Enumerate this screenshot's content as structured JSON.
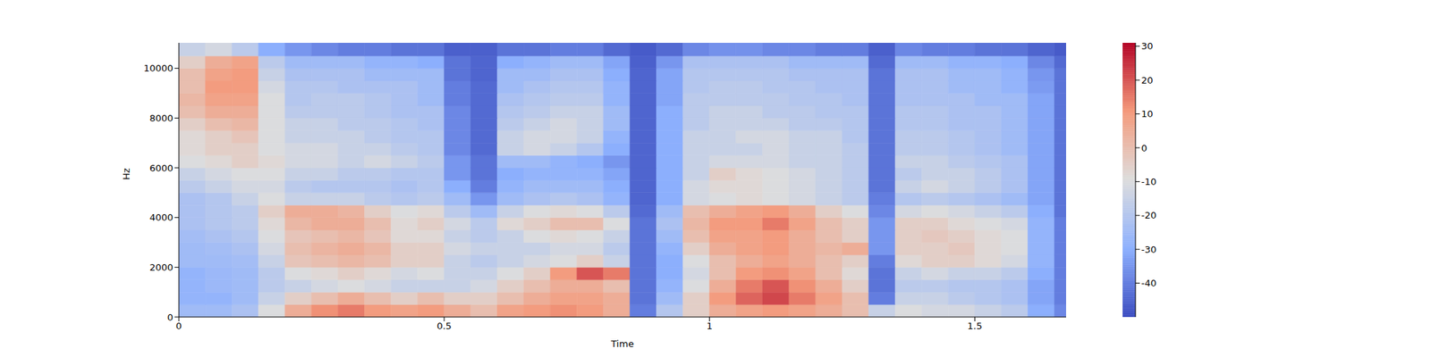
{
  "chart_data": {
    "type": "heatmap",
    "xlabel": "Time",
    "ylabel": "Hz",
    "xlim": [
      0,
      1.672
    ],
    "xticks": [
      0,
      0.5,
      1,
      1.5
    ],
    "ylim": [
      0,
      11025
    ],
    "yticks": [
      0,
      2000,
      4000,
      6000,
      8000,
      10000
    ],
    "x_bins": [
      0,
      0.05,
      0.1,
      0.15,
      0.2,
      0.25,
      0.3,
      0.35,
      0.4,
      0.45,
      0.5,
      0.55,
      0.6,
      0.65,
      0.7,
      0.75,
      0.8,
      0.85,
      0.9,
      0.95,
      1.0,
      1.05,
      1.1,
      1.15,
      1.2,
      1.25,
      1.3,
      1.35,
      1.4,
      1.45,
      1.5,
      1.55,
      1.6,
      1.65,
      1.672
    ],
    "y_bins": [
      0,
      500,
      1000,
      1500,
      2000,
      2500,
      3000,
      3500,
      4000,
      4500,
      5000,
      5500,
      6000,
      6500,
      7000,
      7500,
      8000,
      8500,
      9000,
      9500,
      10000,
      10500,
      11025
    ],
    "colorbar": {
      "range": [
        -50,
        31
      ],
      "ticks": [
        -40,
        -30,
        -20,
        -10,
        0,
        10,
        20,
        30
      ]
    },
    "z": [
      [
        -25,
        -25,
        -22,
        -10,
        5,
        12,
        15,
        10,
        8,
        10,
        5,
        0,
        8,
        10,
        12,
        10,
        5,
        -40,
        -20,
        -5,
        5,
        8,
        10,
        8,
        5,
        0,
        -15,
        -10,
        -12,
        -12,
        -15,
        -18,
        -30,
        -38
      ],
      [
        -28,
        -28,
        -25,
        -15,
        -5,
        0,
        5,
        0,
        -5,
        0,
        -5,
        -5,
        0,
        5,
        8,
        8,
        5,
        -42,
        -25,
        -5,
        10,
        18,
        22,
        15,
        8,
        0,
        -40,
        -15,
        -15,
        -18,
        -20,
        -22,
        -32,
        -40
      ],
      [
        -28,
        -26,
        -25,
        -18,
        -15,
        -12,
        -10,
        -12,
        -15,
        -15,
        -15,
        -12,
        -5,
        0,
        5,
        5,
        0,
        -42,
        -28,
        -10,
        5,
        15,
        20,
        12,
        5,
        -5,
        -42,
        -18,
        -18,
        -20,
        -20,
        -22,
        -32,
        -40
      ],
      [
        -28,
        -26,
        -25,
        -18,
        -10,
        -8,
        -5,
        -8,
        -12,
        -10,
        -15,
        -15,
        -10,
        -5,
        10,
        20,
        15,
        -42,
        -30,
        -12,
        0,
        10,
        12,
        8,
        0,
        -8,
        -42,
        -15,
        -12,
        -15,
        -15,
        -18,
        -30,
        -40
      ],
      [
        -25,
        -25,
        -24,
        -15,
        -2,
        0,
        2,
        0,
        -5,
        -5,
        -15,
        -18,
        -15,
        -12,
        -10,
        -5,
        -15,
        -42,
        -30,
        -10,
        0,
        5,
        8,
        5,
        0,
        -5,
        -40,
        -8,
        -5,
        -5,
        -8,
        -12,
        -28,
        -40
      ],
      [
        -25,
        -24,
        -22,
        -12,
        0,
        3,
        5,
        2,
        -5,
        -5,
        -12,
        -15,
        -15,
        -15,
        -12,
        -12,
        -18,
        -42,
        -28,
        -5,
        5,
        8,
        10,
        5,
        2,
        5,
        -35,
        -5,
        -5,
        -3,
        -8,
        -10,
        -28,
        -40
      ],
      [
        -24,
        -22,
        -20,
        -10,
        -2,
        0,
        2,
        -2,
        -8,
        -8,
        -15,
        -18,
        -15,
        -10,
        -8,
        -10,
        -15,
        -42,
        -25,
        0,
        8,
        8,
        10,
        5,
        0,
        -5,
        -35,
        -5,
        -3,
        -5,
        -8,
        -10,
        -28,
        -40
      ],
      [
        -22,
        -20,
        -18,
        -8,
        2,
        5,
        5,
        0,
        -8,
        -5,
        -12,
        -18,
        -8,
        -5,
        0,
        0,
        -10,
        -42,
        -22,
        2,
        10,
        10,
        15,
        8,
        0,
        -5,
        -35,
        -5,
        -5,
        -8,
        -10,
        -12,
        -28,
        -40
      ],
      [
        -22,
        -20,
        -18,
        -5,
        5,
        5,
        3,
        -5,
        -10,
        -8,
        -18,
        -25,
        -15,
        -10,
        -8,
        -10,
        -18,
        -44,
        -25,
        0,
        5,
        8,
        10,
        5,
        -5,
        -10,
        -38,
        -12,
        -10,
        -12,
        -15,
        -18,
        -30,
        -42
      ],
      [
        -22,
        -20,
        -15,
        -10,
        -15,
        -15,
        -15,
        -18,
        -20,
        -18,
        -25,
        -35,
        -25,
        -22,
        -20,
        -22,
        -28,
        -45,
        -30,
        -12,
        -10,
        -8,
        -10,
        -12,
        -15,
        -18,
        -40,
        -20,
        -18,
        -20,
        -22,
        -25,
        -32,
        -42
      ],
      [
        -18,
        -15,
        -12,
        -12,
        -18,
        -20,
        -20,
        -20,
        -22,
        -20,
        -30,
        -40,
        -28,
        -25,
        -25,
        -25,
        -30,
        -45,
        -30,
        -12,
        -8,
        -8,
        -10,
        -12,
        -15,
        -18,
        -42,
        -15,
        -12,
        -15,
        -18,
        -22,
        -32,
        -42
      ],
      [
        -15,
        -12,
        -10,
        -10,
        -15,
        -15,
        -18,
        -18,
        -20,
        -20,
        -35,
        -42,
        -30,
        -28,
        -28,
        -28,
        -32,
        -45,
        -30,
        -15,
        -5,
        -8,
        -10,
        -12,
        -15,
        -18,
        -42,
        -18,
        -15,
        -15,
        -18,
        -22,
        -32,
        -42
      ],
      [
        -10,
        -8,
        -5,
        -8,
        -12,
        -12,
        -15,
        -12,
        -15,
        -18,
        -35,
        -42,
        -25,
        -25,
        -28,
        -30,
        -35,
        -45,
        -30,
        -15,
        -12,
        -12,
        -12,
        -15,
        -15,
        -18,
        -42,
        -15,
        -15,
        -18,
        -20,
        -22,
        -32,
        -42
      ],
      [
        -8,
        -5,
        -5,
        -10,
        -12,
        -12,
        -15,
        -15,
        -18,
        -20,
        -38,
        -44,
        -15,
        -12,
        -15,
        -20,
        -30,
        -45,
        -30,
        -15,
        -15,
        -15,
        -12,
        -15,
        -15,
        -18,
        -42,
        -18,
        -18,
        -20,
        -22,
        -25,
        -32,
        -42
      ],
      [
        -8,
        -5,
        -2,
        -10,
        -15,
        -15,
        -15,
        -18,
        -20,
        -20,
        -38,
        -44,
        -15,
        -12,
        -12,
        -15,
        -28,
        -45,
        -30,
        -15,
        -15,
        -12,
        -12,
        -15,
        -15,
        -20,
        -42,
        -18,
        -18,
        -20,
        -22,
        -25,
        -32,
        -42
      ],
      [
        -5,
        0,
        2,
        -10,
        -15,
        -15,
        -18,
        -18,
        -20,
        -22,
        -38,
        -44,
        -18,
        -15,
        -12,
        -15,
        -25,
        -45,
        -30,
        -18,
        -15,
        -15,
        -15,
        -18,
        -18,
        -20,
        -42,
        -20,
        -20,
        -22,
        -22,
        -25,
        -32,
        -42
      ],
      [
        0,
        5,
        5,
        -10,
        -18,
        -18,
        -18,
        -20,
        -22,
        -22,
        -38,
        -44,
        -20,
        -18,
        -15,
        -15,
        -25,
        -45,
        -30,
        -18,
        -15,
        -15,
        -18,
        -18,
        -20,
        -20,
        -42,
        -20,
        -20,
        -22,
        -22,
        -25,
        -32,
        -42
      ],
      [
        2,
        8,
        8,
        -10,
        -20,
        -18,
        -18,
        -20,
        -22,
        -25,
        -40,
        -44,
        -22,
        -20,
        -18,
        -18,
        -28,
        -45,
        -32,
        -18,
        -18,
        -18,
        -18,
        -20,
        -20,
        -22,
        -42,
        -22,
        -22,
        -22,
        -25,
        -25,
        -32,
        -42
      ],
      [
        0,
        10,
        10,
        -12,
        -20,
        -20,
        -22,
        -22,
        -22,
        -25,
        -40,
        -44,
        -25,
        -22,
        -20,
        -20,
        -28,
        -45,
        -32,
        -20,
        -18,
        -18,
        -20,
        -20,
        -22,
        -22,
        -42,
        -22,
        -22,
        -25,
        -25,
        -28,
        -34,
        -42
      ],
      [
        0,
        8,
        10,
        -15,
        -22,
        -22,
        -22,
        -25,
        -25,
        -25,
        -42,
        -45,
        -25,
        -25,
        -22,
        -22,
        -30,
        -45,
        -32,
        -20,
        -20,
        -20,
        -20,
        -22,
        -22,
        -22,
        -42,
        -22,
        -22,
        -25,
        -25,
        -28,
        -35,
        -42
      ],
      [
        -5,
        5,
        8,
        -18,
        -25,
        -25,
        -25,
        -28,
        -28,
        -30,
        -42,
        -45,
        -30,
        -28,
        -25,
        -25,
        -32,
        -46,
        -35,
        -22,
        -22,
        -22,
        -22,
        -25,
        -25,
        -25,
        -44,
        -25,
        -25,
        -28,
        -28,
        -30,
        -38,
        -44
      ],
      [
        -15,
        -12,
        -18,
        -30,
        -35,
        -38,
        -40,
        -40,
        -42,
        -42,
        -46,
        -46,
        -42,
        -42,
        -40,
        -40,
        -44,
        -47,
        -44,
        -38,
        -36,
        -36,
        -38,
        -38,
        -40,
        -40,
        -46,
        -38,
        -40,
        -40,
        -42,
        -42,
        -45,
        -47
      ]
    ]
  }
}
